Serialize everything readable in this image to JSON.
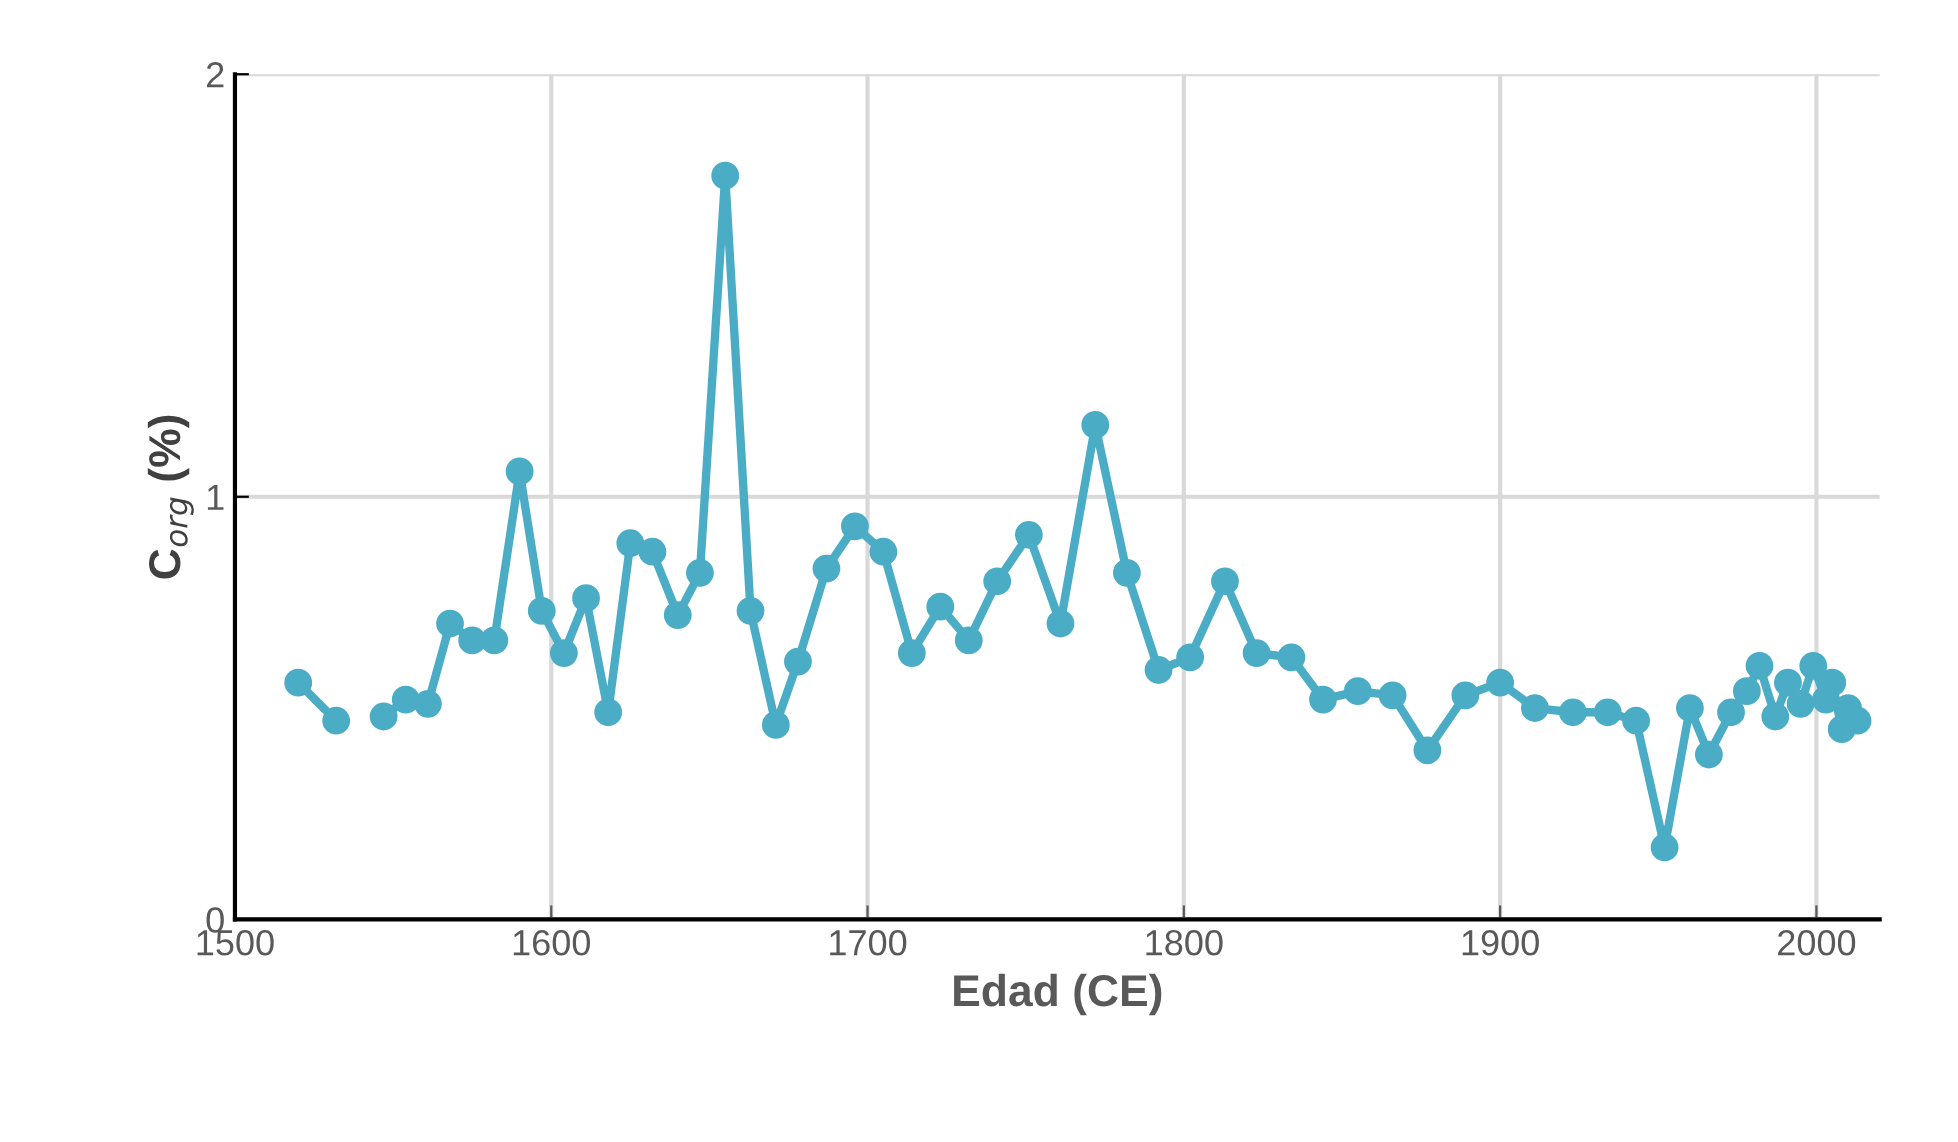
{
  "chart_data": {
    "type": "line",
    "xlabel": "Edad (CE)",
    "ylabel": "C$_{org}$ (%)",
    "x": [
      1520,
      1532,
      1540,
      1547,
      1554,
      1561,
      1568,
      1575,
      1582,
      1590,
      1597,
      1604,
      1611,
      1618,
      1625,
      1632,
      1640,
      1647,
      1655,
      1663,
      1671,
      1678,
      1687,
      1696,
      1705,
      1714,
      1723,
      1732,
      1741,
      1751,
      1761,
      1772,
      1782,
      1792,
      1802,
      1813,
      1823,
      1834,
      1844,
      1855,
      1866,
      1877,
      1889,
      1900,
      1911,
      1923,
      1934,
      1943,
      1952,
      1960,
      1966,
      1973,
      1978,
      1982,
      1987,
      1991,
      1995,
      1999,
      2003,
      2005,
      2008,
      2010,
      2013
    ],
    "series": [
      {
        "color": "#4bacc6",
        "values": [
          0.56,
          0.47,
          null,
          0.48,
          0.52,
          0.51,
          0.7,
          0.66,
          0.66,
          1.06,
          0.73,
          0.63,
          0.76,
          0.49,
          0.89,
          0.87,
          0.72,
          0.82,
          1.76,
          0.73,
          0.46,
          0.61,
          0.83,
          0.93,
          0.87,
          0.63,
          0.74,
          0.66,
          0.8,
          0.91,
          0.7,
          1.17,
          0.82,
          0.59,
          0.62,
          0.8,
          0.63,
          0.62,
          0.52,
          0.54,
          0.53,
          0.4,
          0.53,
          0.56,
          0.5,
          0.49,
          0.49,
          0.47,
          0.17,
          0.5,
          0.39,
          0.49,
          0.54,
          0.6,
          0.48,
          0.56,
          0.51,
          0.6,
          0.52,
          0.56,
          0.45,
          0.5,
          0.47
        ]
      }
    ],
    "xlim": [
      1500,
      2020
    ],
    "xticks": [
      1500,
      1600,
      1700,
      1800,
      1900,
      2000
    ],
    "ylim": [
      0,
      2
    ],
    "yticks": [
      0,
      1,
      2
    ],
    "grid": true,
    "marker": "circle",
    "line_style": "solid"
  }
}
